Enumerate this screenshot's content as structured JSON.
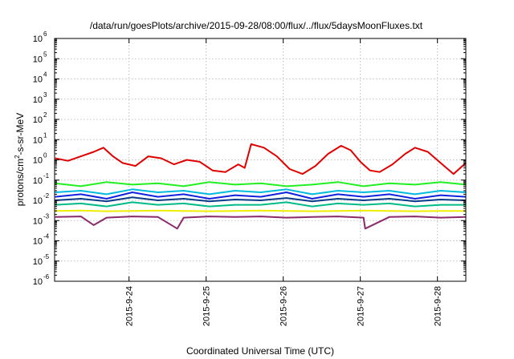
{
  "chart_data": {
    "type": "line",
    "title": "/data/run/goesPlots/archive/2015-09-28/08:00/flux/../flux/5daysMoonFluxes.txt",
    "xlabel": "Coordinated Universal Time (UTC)",
    "ylabel": "protons/cm²-s-sr-MeV",
    "ylabel_parts": {
      "pre": "protons/cm",
      "sup": "2",
      "post": "-s-sr-MeV"
    },
    "y_scale": "log",
    "ylim": [
      1e-06,
      1000000
    ],
    "xlim": [
      "2015-09-23 00:50",
      "2015-09-28 08:50"
    ],
    "x_ticks": [
      "2015-9-24",
      "2015-9-25",
      "2015-9-26",
      "2015-9-27",
      "2015-9-28"
    ],
    "y_ticks": [
      {
        "base": "10",
        "exp": "-6"
      },
      {
        "base": "10",
        "exp": "-5"
      },
      {
        "base": "10",
        "exp": "-4"
      },
      {
        "base": "10",
        "exp": "-3"
      },
      {
        "base": "10",
        "exp": "-2"
      },
      {
        "base": "10",
        "exp": "-1"
      },
      {
        "base": "10",
        "exp": "0"
      },
      {
        "base": "10",
        "exp": "1"
      },
      {
        "base": "10",
        "exp": "2"
      },
      {
        "base": "10",
        "exp": "3"
      },
      {
        "base": "10",
        "exp": "4"
      },
      {
        "base": "10",
        "exp": "5"
      },
      {
        "base": "10",
        "exp": "6"
      }
    ],
    "grid": true,
    "legend": "none",
    "series": [
      {
        "color": "#e00000",
        "x": [
          "2015-09-23 01:00",
          "2015-09-23 05:00",
          "2015-09-23 09:00",
          "2015-09-23 13:00",
          "2015-09-23 16:00",
          "2015-09-23 19:00",
          "2015-09-23 22:00",
          "2015-09-24 02:00",
          "2015-09-24 06:00",
          "2015-09-24 10:00",
          "2015-09-24 14:00",
          "2015-09-24 18:00",
          "2015-09-24 22:00",
          "2015-09-25 02:00",
          "2015-09-25 06:00",
          "2015-09-25 10:00",
          "2015-09-25 12:00",
          "2015-09-25 14:00",
          "2015-09-25 18:00",
          "2015-09-25 22:00",
          "2015-09-26 02:00",
          "2015-09-26 06:00",
          "2015-09-26 10:00",
          "2015-09-26 14:00",
          "2015-09-26 18:00",
          "2015-09-26 21:00",
          "2015-09-27 00:00",
          "2015-09-27 03:00",
          "2015-09-27 06:00",
          "2015-09-27 10:00",
          "2015-09-27 14:00",
          "2015-09-27 17:00",
          "2015-09-27 21:00",
          "2015-09-28 01:00",
          "2015-09-28 05:00",
          "2015-09-28 08:50"
        ],
        "y": [
          1.2,
          0.9,
          1.5,
          2.5,
          4.0,
          1.5,
          0.7,
          0.5,
          1.5,
          1.2,
          0.6,
          1.0,
          0.8,
          0.3,
          0.25,
          0.6,
          0.4,
          6.0,
          4.0,
          1.5,
          0.35,
          0.2,
          0.5,
          2.0,
          5.0,
          3.0,
          0.8,
          0.3,
          0.25,
          0.6,
          2.0,
          4.0,
          2.5,
          0.7,
          0.2,
          0.7
        ]
      },
      {
        "color": "#22ee22",
        "x": [
          "2015-09-23 01:00",
          "2015-09-23 09:00",
          "2015-09-23 17:00",
          "2015-09-24 01:00",
          "2015-09-24 09:00",
          "2015-09-24 17:00",
          "2015-09-25 01:00",
          "2015-09-25 09:00",
          "2015-09-25 17:00",
          "2015-09-26 01:00",
          "2015-09-26 09:00",
          "2015-09-26 17:00",
          "2015-09-27 01:00",
          "2015-09-27 09:00",
          "2015-09-27 17:00",
          "2015-09-28 01:00",
          "2015-09-28 08:50"
        ],
        "y": [
          0.07,
          0.05,
          0.08,
          0.06,
          0.07,
          0.05,
          0.08,
          0.06,
          0.07,
          0.05,
          0.06,
          0.08,
          0.05,
          0.07,
          0.06,
          0.08,
          0.06
        ]
      },
      {
        "color": "#00bbdd",
        "x": [
          "2015-09-23 01:00",
          "2015-09-23 09:00",
          "2015-09-23 17:00",
          "2015-09-24 01:00",
          "2015-09-24 09:00",
          "2015-09-24 17:00",
          "2015-09-25 01:00",
          "2015-09-25 09:00",
          "2015-09-25 17:00",
          "2015-09-26 01:00",
          "2015-09-26 09:00",
          "2015-09-26 17:00",
          "2015-09-27 01:00",
          "2015-09-27 09:00",
          "2015-09-27 17:00",
          "2015-09-28 01:00",
          "2015-09-28 08:50"
        ],
        "y": [
          0.025,
          0.03,
          0.02,
          0.035,
          0.025,
          0.03,
          0.02,
          0.03,
          0.025,
          0.035,
          0.02,
          0.03,
          0.025,
          0.03,
          0.02,
          0.03,
          0.025
        ]
      },
      {
        "color": "#1122dd",
        "x": [
          "2015-09-23 01:00",
          "2015-09-23 09:00",
          "2015-09-23 17:00",
          "2015-09-24 01:00",
          "2015-09-24 09:00",
          "2015-09-24 17:00",
          "2015-09-25 01:00",
          "2015-09-25 09:00",
          "2015-09-25 17:00",
          "2015-09-26 01:00",
          "2015-09-26 09:00",
          "2015-09-26 17:00",
          "2015-09-27 01:00",
          "2015-09-27 09:00",
          "2015-09-27 17:00",
          "2015-09-28 01:00",
          "2015-09-28 08:50"
        ],
        "y": [
          0.015,
          0.02,
          0.012,
          0.025,
          0.015,
          0.02,
          0.012,
          0.018,
          0.015,
          0.025,
          0.012,
          0.02,
          0.015,
          0.02,
          0.012,
          0.018,
          0.015
        ]
      },
      {
        "color": "#0a3a8a",
        "x": [
          "2015-09-23 01:00",
          "2015-09-23 09:00",
          "2015-09-23 17:00",
          "2015-09-24 01:00",
          "2015-09-24 09:00",
          "2015-09-24 17:00",
          "2015-09-25 01:00",
          "2015-09-25 09:00",
          "2015-09-25 17:00",
          "2015-09-26 01:00",
          "2015-09-26 09:00",
          "2015-09-26 17:00",
          "2015-09-27 01:00",
          "2015-09-27 09:00",
          "2015-09-27 17:00",
          "2015-09-28 01:00",
          "2015-09-28 08:50"
        ],
        "y": [
          0.01,
          0.012,
          0.009,
          0.014,
          0.01,
          0.012,
          0.009,
          0.011,
          0.01,
          0.013,
          0.009,
          0.012,
          0.01,
          0.012,
          0.009,
          0.011,
          0.01
        ]
      },
      {
        "color": "#00bb88",
        "x": [
          "2015-09-23 01:00",
          "2015-09-23 09:00",
          "2015-09-23 17:00",
          "2015-09-24 01:00",
          "2015-09-24 09:00",
          "2015-09-24 17:00",
          "2015-09-25 01:00",
          "2015-09-25 09:00",
          "2015-09-25 17:00",
          "2015-09-26 01:00",
          "2015-09-26 09:00",
          "2015-09-26 17:00",
          "2015-09-27 01:00",
          "2015-09-27 09:00",
          "2015-09-27 17:00",
          "2015-09-28 01:00",
          "2015-09-28 08:50"
        ],
        "y": [
          0.006,
          0.007,
          0.005,
          0.008,
          0.006,
          0.007,
          0.005,
          0.006,
          0.006,
          0.008,
          0.005,
          0.007,
          0.006,
          0.007,
          0.005,
          0.006,
          0.006
        ]
      },
      {
        "color": "#eeee00",
        "x": [
          "2015-09-23 01:00",
          "2015-09-23 09:00",
          "2015-09-23 17:00",
          "2015-09-24 01:00",
          "2015-09-24 09:00",
          "2015-09-24 17:00",
          "2015-09-25 01:00",
          "2015-09-25 09:00",
          "2015-09-25 17:00",
          "2015-09-26 01:00",
          "2015-09-26 09:00",
          "2015-09-26 17:00",
          "2015-09-27 01:00",
          "2015-09-27 09:00",
          "2015-09-27 17:00",
          "2015-09-28 01:00",
          "2015-09-28 08:50"
        ],
        "y": [
          0.003,
          0.0031,
          0.0029,
          0.003,
          0.0031,
          0.003,
          0.0029,
          0.003,
          0.0031,
          0.003,
          0.0029,
          0.003,
          0.0031,
          0.003,
          0.0029,
          0.003,
          0.003
        ]
      },
      {
        "color": "#8b2a6b",
        "x": [
          "2015-09-23 01:00",
          "2015-09-23 09:00",
          "2015-09-23 13:00",
          "2015-09-23 17:00",
          "2015-09-24 01:00",
          "2015-09-24 09:00",
          "2015-09-24 15:00",
          "2015-09-24 17:00",
          "2015-09-25 01:00",
          "2015-09-25 09:00",
          "2015-09-25 17:00",
          "2015-09-26 01:00",
          "2015-09-26 09:00",
          "2015-09-26 17:00",
          "2015-09-27 01:00",
          "2015-09-27 01:30",
          "2015-09-27 09:00",
          "2015-09-27 17:00",
          "2015-09-28 01:00",
          "2015-09-28 08:50"
        ],
        "y": [
          0.0015,
          0.0016,
          0.0006,
          0.0014,
          0.0016,
          0.0015,
          0.0004,
          0.0014,
          0.0016,
          0.0015,
          0.0016,
          0.0014,
          0.0015,
          0.0016,
          0.0014,
          0.0004,
          0.0015,
          0.0016,
          0.0014,
          0.0015
        ]
      }
    ]
  }
}
